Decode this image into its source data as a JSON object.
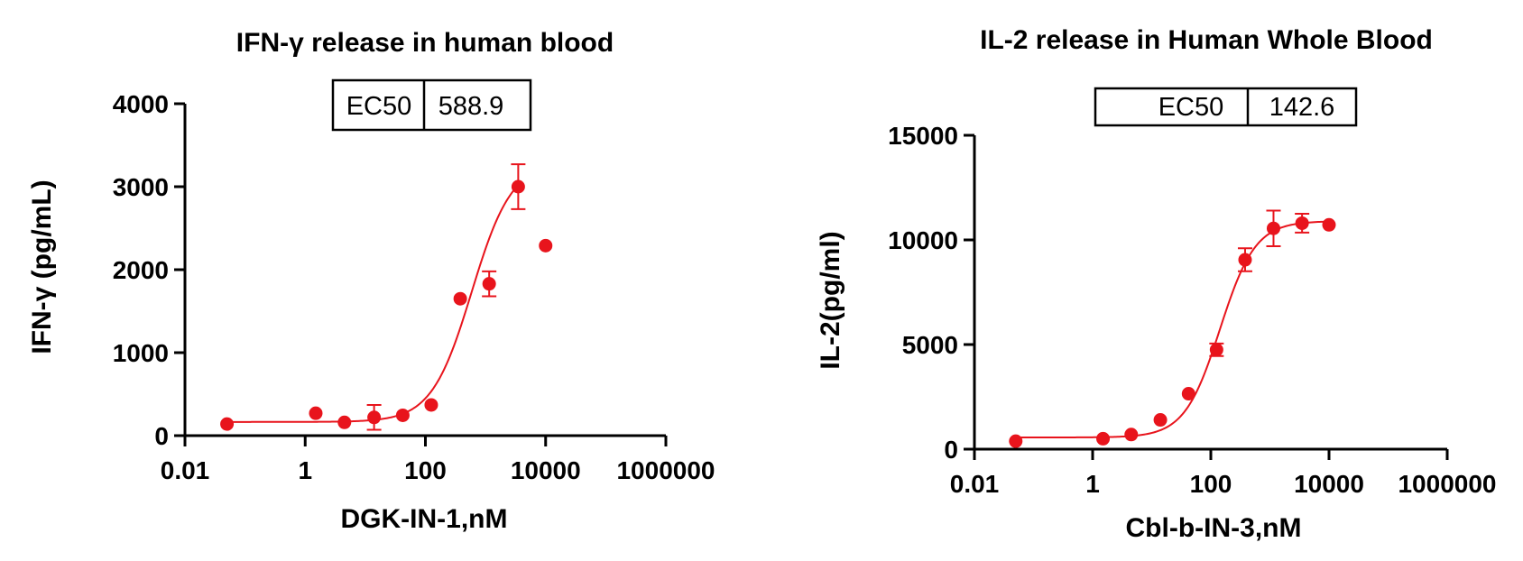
{
  "colors": {
    "series": "#e8141c",
    "axis": "#000000"
  },
  "chart_data": [
    {
      "type": "scatter",
      "title": "IFN-γ release in human blood",
      "xlabel": "DGK-IN-1,nM",
      "ylabel": "IFN-γ (pg/mL)",
      "xscale": "log",
      "xlim": [
        0.01,
        1000000
      ],
      "ylim": [
        0,
        4000
      ],
      "xticks": [
        0.01,
        1,
        100,
        10000,
        1000000
      ],
      "xtick_labels": [
        "0.01",
        "1",
        "100",
        "10000",
        "1000000"
      ],
      "yticks": [
        0,
        1000,
        2000,
        3000,
        4000
      ],
      "ytick_labels": [
        "0",
        "1000",
        "2000",
        "3000",
        "4000"
      ],
      "ec50_label": "EC50",
      "ec50_value": "588.9",
      "points": [
        {
          "x": 0.05,
          "y": 140,
          "err": 0
        },
        {
          "x": 1.5,
          "y": 270,
          "err": 0
        },
        {
          "x": 4.5,
          "y": 160,
          "err": 0
        },
        {
          "x": 14,
          "y": 220,
          "err": 150
        },
        {
          "x": 42,
          "y": 245,
          "err": 0
        },
        {
          "x": 125,
          "y": 370,
          "err": 0
        },
        {
          "x": 380,
          "y": 1650,
          "err": 0
        },
        {
          "x": 1150,
          "y": 1830,
          "err": 150
        },
        {
          "x": 3500,
          "y": 3000,
          "err": 270
        },
        {
          "x": 10000,
          "y": 2290,
          "err": 0
        }
      ],
      "fit": {
        "bottom": 165,
        "top": 3300,
        "ec50": 588.9,
        "hill": 1.3,
        "xmin": 0.05,
        "xmax": 3500
      }
    },
    {
      "type": "scatter",
      "title": "IL-2 release in Human Whole Blood",
      "xlabel": "Cbl-b-IN-3,nM",
      "ylabel": "IL-2(pg/ml)",
      "xscale": "log",
      "xlim": [
        0.01,
        1000000
      ],
      "ylim": [
        0,
        15000
      ],
      "xticks": [
        0.01,
        1,
        100,
        10000,
        1000000
      ],
      "xtick_labels": [
        "0.01",
        "1",
        "100",
        "10000",
        "1000000"
      ],
      "yticks": [
        0,
        5000,
        10000,
        15000
      ],
      "ytick_labels": [
        "0",
        "5000",
        "10000",
        "15000"
      ],
      "ec50_label": "EC50",
      "ec50_value": "142.6",
      "points": [
        {
          "x": 0.05,
          "y": 380,
          "err": 0
        },
        {
          "x": 1.5,
          "y": 500,
          "err": 0
        },
        {
          "x": 4.5,
          "y": 700,
          "err": 0
        },
        {
          "x": 14,
          "y": 1400,
          "err": 0
        },
        {
          "x": 42,
          "y": 2650,
          "err": 0
        },
        {
          "x": 125,
          "y": 4750,
          "err": 300
        },
        {
          "x": 380,
          "y": 9050,
          "err": 550
        },
        {
          "x": 1150,
          "y": 10550,
          "err": 850
        },
        {
          "x": 3500,
          "y": 10800,
          "err": 450
        },
        {
          "x": 10000,
          "y": 10720,
          "err": 0
        }
      ],
      "fit": {
        "bottom": 560,
        "top": 10900,
        "ec50": 142.6,
        "hill": 1.45,
        "xmin": 0.05,
        "xmax": 10000
      }
    }
  ]
}
